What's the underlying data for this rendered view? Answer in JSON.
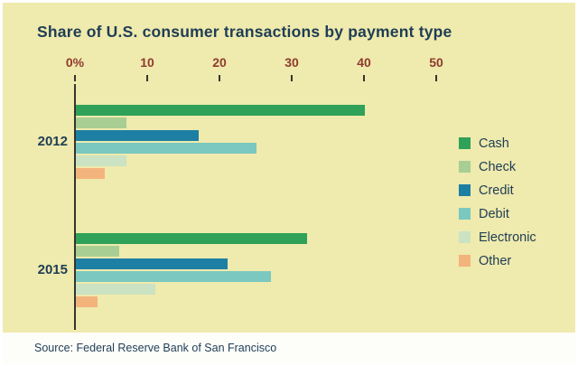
{
  "chart_data": {
    "type": "bar",
    "orientation": "horizontal",
    "title": "Share of U.S. consumer transactions by payment type",
    "source": "Source: Federal Reserve Bank of San Francisco",
    "categories": [
      "2012",
      "2015"
    ],
    "series": [
      {
        "name": "Cash",
        "color": "#2fa158",
        "values": [
          40,
          32
        ]
      },
      {
        "name": "Check",
        "color": "#a9ce93",
        "values": [
          7,
          6
        ]
      },
      {
        "name": "Credit",
        "color": "#1d7fa3",
        "values": [
          17,
          21
        ]
      },
      {
        "name": "Debit",
        "color": "#7ac8c0",
        "values": [
          25,
          27
        ]
      },
      {
        "name": "Electronic",
        "color": "#cbe2c3",
        "values": [
          7,
          11
        ]
      },
      {
        "name": "Other",
        "color": "#f3b47c",
        "values": [
          4,
          3
        ]
      }
    ],
    "x_ticks": [
      {
        "label": "0%",
        "value": 0
      },
      {
        "label": "10",
        "value": 10
      },
      {
        "label": "20",
        "value": 20
      },
      {
        "label": "30",
        "value": 30
      },
      {
        "label": "40",
        "value": 40
      },
      {
        "label": "50",
        "value": 50
      }
    ],
    "xlim": [
      0,
      50
    ],
    "legend_position": "right",
    "grid": false
  },
  "colors": {
    "background": "#efeaad",
    "title": "#1e3d55",
    "tick_label": "#8e3b2f",
    "axis_line": "#35352c",
    "footer_bg": "#fdfdfa"
  }
}
